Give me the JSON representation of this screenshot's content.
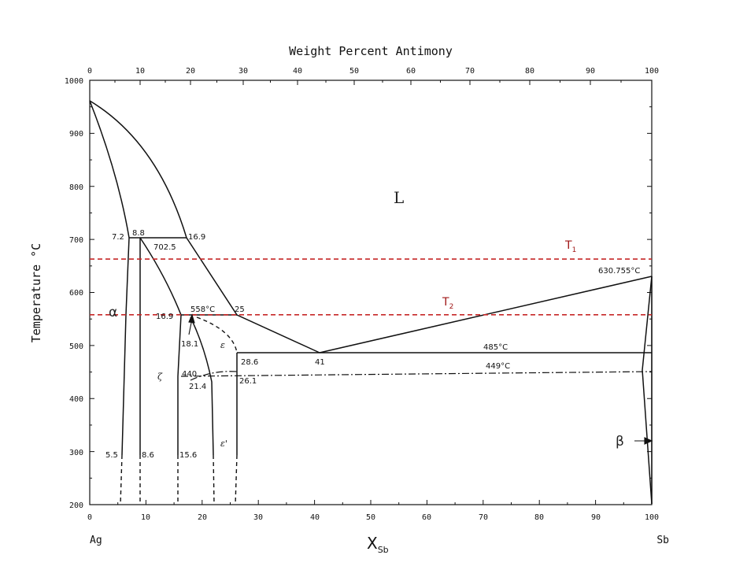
{
  "top_axis": {
    "title": "Weight Percent Antimony",
    "ticks": [
      "0",
      "10",
      "20",
      "30",
      "40",
      "50",
      "60",
      "70",
      "80",
      "90",
      "100"
    ]
  },
  "bottom_axis": {
    "title": "X",
    "title_sub": "Sb",
    "ticks": [
      "0",
      "10",
      "20",
      "30",
      "40",
      "50",
      "60",
      "70",
      "80",
      "90",
      "100"
    ],
    "left_end": "Ag",
    "right_end": "Sb"
  },
  "left_axis": {
    "title": "Temperature °C",
    "ticks": [
      "200",
      "300",
      "400",
      "500",
      "600",
      "700",
      "800",
      "900",
      "1000"
    ]
  },
  "phases": {
    "liquid": "L",
    "alpha": "α",
    "zeta": "ζ",
    "epsilon": "ε",
    "epsilon_prime": "ε'",
    "beta": "β"
  },
  "isotherms": {
    "t1": {
      "label": "T",
      "sub": "1",
      "temp_c": 663,
      "color": "#c62828"
    },
    "t2": {
      "label": "T",
      "sub": "2",
      "temp_c": 558,
      "color": "#c62828"
    }
  },
  "annotations": {
    "a_72": "7.2",
    "a_88": "8.8",
    "a_169": "16.9",
    "a_7025": "702.5",
    "a_169b": "16.9",
    "a_558": "558°C",
    "a_25": "25",
    "a_181": "18.1",
    "a_286": "28.6",
    "a_41": "41",
    "a_485": "485°C",
    "a_449": "449°C",
    "a_440": "440",
    "a_214": "21.4",
    "a_261": "26.1",
    "a_55": "5.5",
    "a_86": "8.6",
    "a_156": "15.6",
    "a_630": "630.755°C"
  }
}
